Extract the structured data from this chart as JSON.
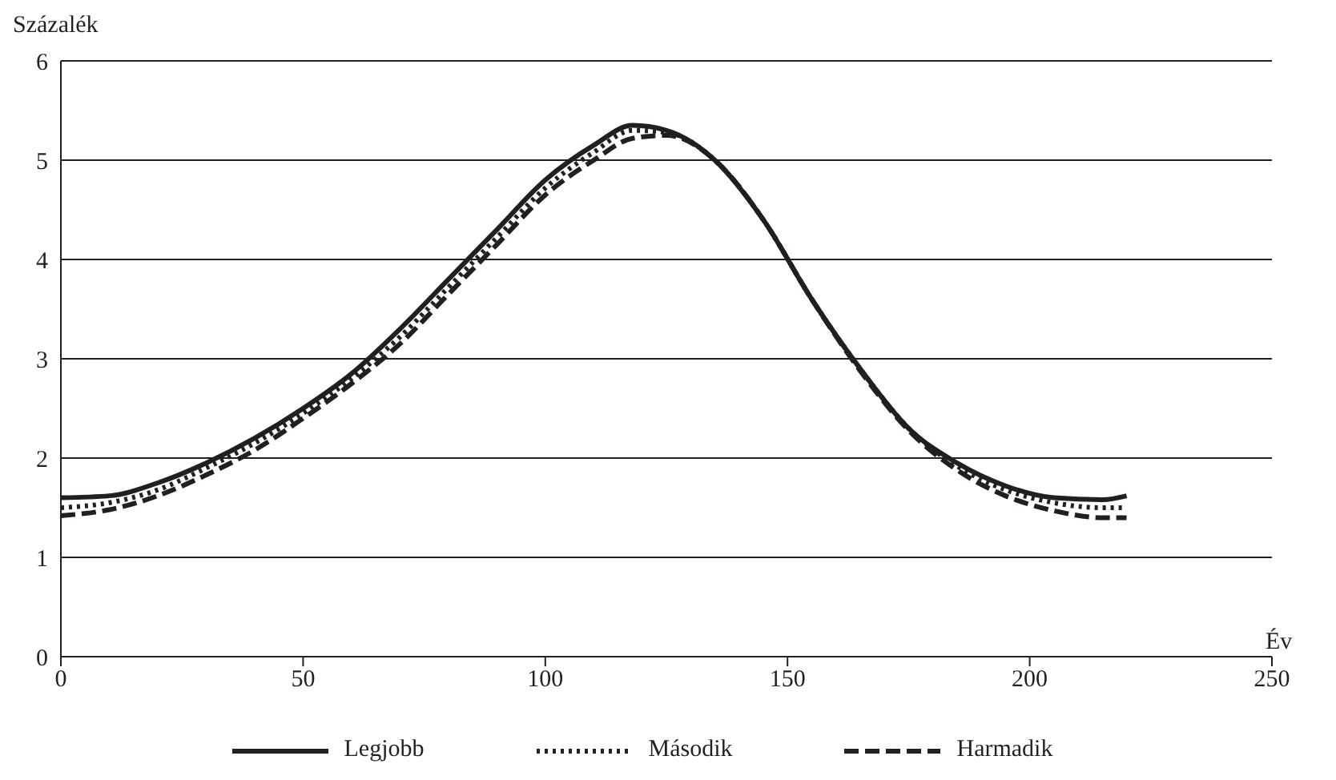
{
  "chart_data": {
    "type": "line",
    "xlabel": "Év",
    "ylabel": "Százalék",
    "x": [
      0,
      10,
      20,
      30,
      40,
      50,
      60,
      70,
      80,
      90,
      100,
      110,
      118,
      125,
      135,
      145,
      155,
      165,
      175,
      185,
      195,
      205,
      215,
      220
    ],
    "series": [
      {
        "name": "Legjobb",
        "color": "#231f20",
        "line_style": "solid",
        "values": [
          1.6,
          1.62,
          1.75,
          1.95,
          2.2,
          2.5,
          2.85,
          3.3,
          3.8,
          4.3,
          4.8,
          5.15,
          5.35,
          5.3,
          5.0,
          4.4,
          3.6,
          2.9,
          2.3,
          1.95,
          1.72,
          1.6,
          1.58,
          1.62
        ]
      },
      {
        "name": "Második",
        "color": "#231f20",
        "line_style": "dotted",
        "values": [
          1.5,
          1.55,
          1.68,
          1.9,
          2.15,
          2.45,
          2.8,
          3.22,
          3.72,
          4.22,
          4.72,
          5.08,
          5.3,
          5.28,
          5.0,
          4.4,
          3.6,
          2.9,
          2.3,
          1.92,
          1.68,
          1.55,
          1.5,
          1.5
        ]
      },
      {
        "name": "Harmadik",
        "color": "#231f20",
        "line_style": "dashed",
        "values": [
          1.42,
          1.48,
          1.62,
          1.83,
          2.08,
          2.4,
          2.75,
          3.15,
          3.65,
          4.15,
          4.65,
          5.0,
          5.22,
          5.25,
          5.0,
          4.4,
          3.6,
          2.88,
          2.28,
          1.88,
          1.62,
          1.47,
          1.4,
          1.4
        ]
      }
    ],
    "xlim": [
      0,
      250
    ],
    "xticks": [
      0,
      50,
      100,
      150,
      200,
      250
    ],
    "ylim": [
      0,
      6
    ],
    "yticks": [
      0,
      1,
      2,
      3,
      4,
      5,
      6
    ],
    "grid": "y",
    "legend": "bottom",
    "marker": "none"
  }
}
